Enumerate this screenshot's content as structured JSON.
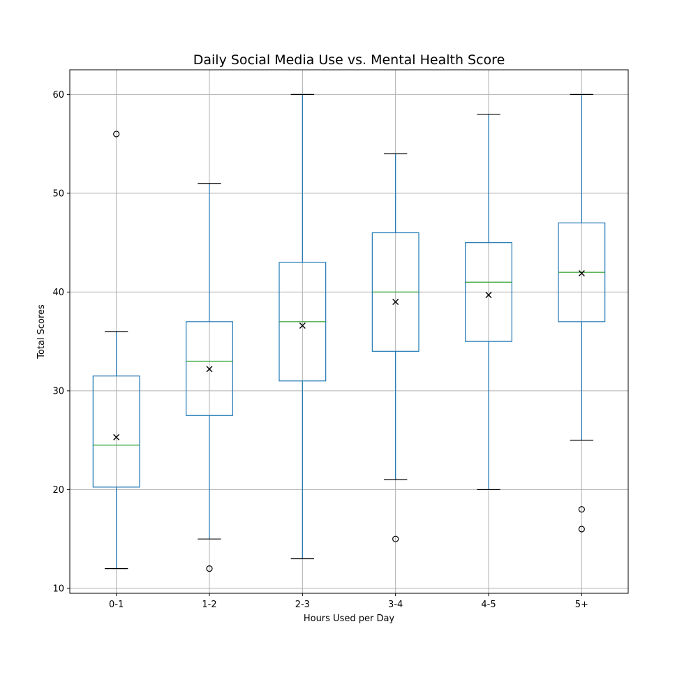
{
  "chart_data": {
    "type": "box",
    "title": "Daily Social Media Use vs. Mental Health Score",
    "xlabel": "Hours Used per Day",
    "ylabel": "Total Scores",
    "ylim": [
      9.5,
      62.5
    ],
    "yticks": [
      10,
      20,
      30,
      40,
      50,
      60
    ],
    "grid": true,
    "colors": {
      "box": "#1f77b4",
      "median": "#2ca02c",
      "whisker": "#1f77b4",
      "cap": "#000000",
      "mean_marker": "#000000",
      "outlier": "#000000",
      "grid": "#b0b0b0"
    },
    "categories": [
      "0-1",
      "1-2",
      "2-3",
      "3-4",
      "4-5",
      "5+"
    ],
    "boxes": [
      {
        "category": "0-1",
        "whisker_low": 12,
        "q1": 20.25,
        "median": 24.5,
        "q3": 31.5,
        "whisker_high": 36,
        "mean": 25.3,
        "outliers": [
          56
        ]
      },
      {
        "category": "1-2",
        "whisker_low": 15,
        "q1": 27.5,
        "median": 33,
        "q3": 37,
        "whisker_high": 51,
        "mean": 32.2,
        "outliers": [
          12
        ]
      },
      {
        "category": "2-3",
        "whisker_low": 13,
        "q1": 31,
        "median": 37,
        "q3": 43,
        "whisker_high": 60,
        "mean": 36.6,
        "outliers": []
      },
      {
        "category": "3-4",
        "whisker_low": 21,
        "q1": 34,
        "median": 40,
        "q3": 46,
        "whisker_high": 54,
        "mean": 39,
        "outliers": [
          15
        ]
      },
      {
        "category": "4-5",
        "whisker_low": 20,
        "q1": 35,
        "median": 41,
        "q3": 45,
        "whisker_high": 58,
        "mean": 39.7,
        "outliers": []
      },
      {
        "category": "5+",
        "whisker_low": 25,
        "q1": 37,
        "median": 42,
        "q3": 47,
        "whisker_high": 60,
        "mean": 41.9,
        "outliers": [
          18,
          16
        ]
      }
    ]
  }
}
